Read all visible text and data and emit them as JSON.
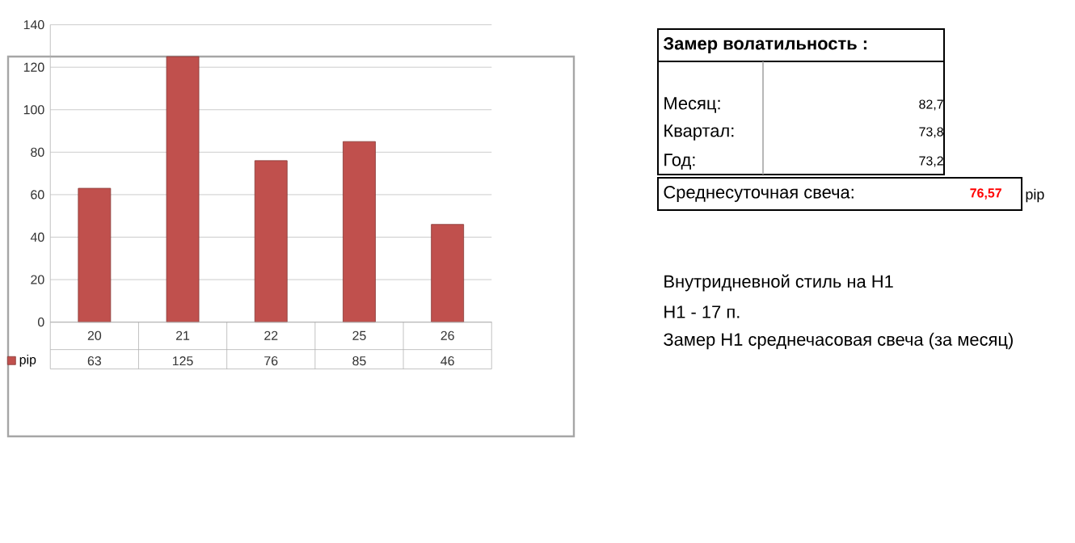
{
  "chart_data": {
    "type": "bar",
    "categories": [
      "20",
      "21",
      "22",
      "25",
      "26"
    ],
    "series": [
      {
        "name": "pip",
        "color": "#c0504d",
        "values": [
          63,
          125,
          76,
          85,
          46
        ]
      }
    ],
    "ylim": [
      0,
      140
    ],
    "yticks": [
      0,
      20,
      40,
      60,
      80,
      100,
      120,
      140
    ],
    "grid": "y",
    "legend": "bottom",
    "data_labels": true,
    "annotations": [
      "Замер  волатильность :",
      "Месяц:",
      "82,7",
      "Квартал:",
      "73,8",
      "Год:",
      "73,2",
      "Среднесуточная свеча:",
      "76,57",
      "pip",
      "Внутридневной стиль на H1",
      "H1 - 17 п.",
      "Замер H1 среднечасовая свеча (за месяц)"
    ]
  }
}
